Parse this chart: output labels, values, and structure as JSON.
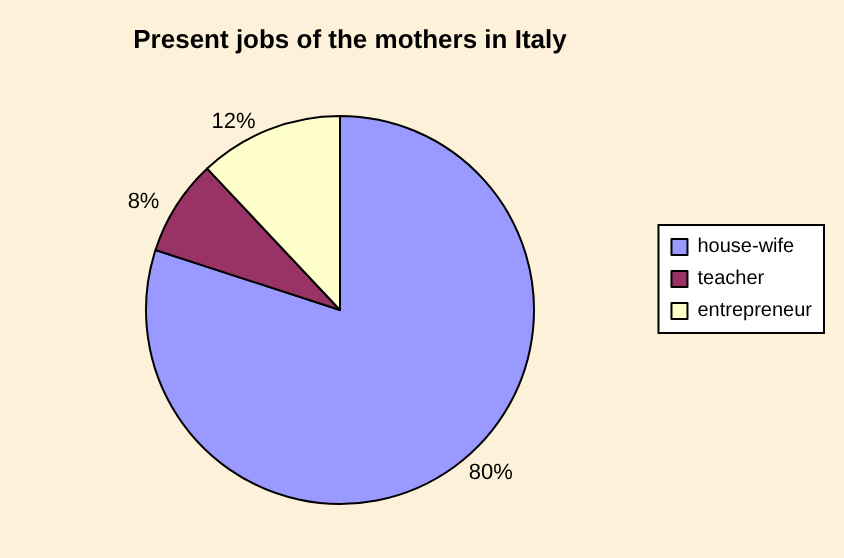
{
  "chart_data": {
    "type": "pie",
    "title": "Present jobs of the mothers in Italy",
    "categories": [
      "house-wife",
      "teacher",
      "entrepreneur"
    ],
    "values": [
      80,
      8,
      12
    ],
    "value_labels": [
      "80%",
      "8%",
      "12%"
    ],
    "colors": [
      "#9999ff",
      "#993366",
      "#ffffcc"
    ],
    "legend": "right"
  }
}
